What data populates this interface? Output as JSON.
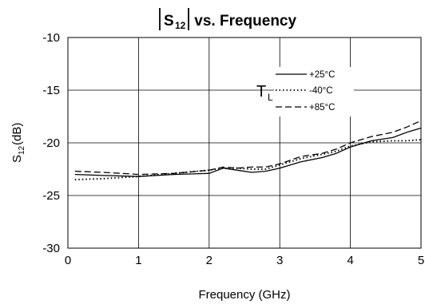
{
  "chart_data": {
    "type": "line",
    "title": {
      "main": "S",
      "subscript": "12",
      "suffix": " vs. Frequency"
    },
    "xlabel": "Frequency (GHz)",
    "ylabel": {
      "main": "S",
      "subscript": "12",
      "suffix": "(dB)"
    },
    "xlim": [
      0,
      5
    ],
    "ylim": [
      -30,
      -10
    ],
    "xticks": [
      "0",
      "1",
      "2",
      "3",
      "4",
      "5"
    ],
    "yticks": [
      "-10",
      "-15",
      "-20",
      "-25",
      "-30"
    ],
    "grid": true,
    "legend": {
      "position": "top-right",
      "parameter": "T",
      "parameter_subscript": "L",
      "entries": [
        "+25°C",
        "-40°C",
        "+85°C"
      ]
    },
    "series": [
      {
        "name": "+25°C",
        "style": "solid",
        "points": [
          [
            0.1,
            -23.0
          ],
          [
            0.5,
            -23.1
          ],
          [
            1.0,
            -23.2
          ],
          [
            1.5,
            -23.0
          ],
          [
            2.0,
            -22.9
          ],
          [
            2.2,
            -22.4
          ],
          [
            2.4,
            -22.6
          ],
          [
            2.6,
            -22.8
          ],
          [
            2.8,
            -22.7
          ],
          [
            3.0,
            -22.4
          ],
          [
            3.3,
            -21.8
          ],
          [
            3.6,
            -21.4
          ],
          [
            3.8,
            -21.0
          ],
          [
            4.0,
            -20.4
          ],
          [
            4.3,
            -19.8
          ],
          [
            4.6,
            -19.5
          ],
          [
            4.8,
            -19.0
          ],
          [
            5.0,
            -18.6
          ]
        ]
      },
      {
        "name": "-40°C",
        "style": "dotted",
        "points": [
          [
            0.1,
            -23.5
          ],
          [
            0.5,
            -23.4
          ],
          [
            1.0,
            -23.2
          ],
          [
            1.5,
            -22.9
          ],
          [
            2.0,
            -22.6
          ],
          [
            2.2,
            -22.4
          ],
          [
            2.4,
            -22.4
          ],
          [
            2.6,
            -22.5
          ],
          [
            2.8,
            -22.5
          ],
          [
            3.0,
            -22.1
          ],
          [
            3.3,
            -21.5
          ],
          [
            3.6,
            -21.1
          ],
          [
            3.8,
            -20.8
          ],
          [
            4.0,
            -20.3
          ],
          [
            4.3,
            -19.9
          ],
          [
            4.6,
            -19.8
          ],
          [
            4.8,
            -19.8
          ],
          [
            5.0,
            -19.7
          ]
        ]
      },
      {
        "name": "+85°C",
        "style": "dashed",
        "points": [
          [
            0.1,
            -22.7
          ],
          [
            0.5,
            -22.8
          ],
          [
            1.0,
            -23.0
          ],
          [
            1.5,
            -22.9
          ],
          [
            2.0,
            -22.6
          ],
          [
            2.2,
            -22.3
          ],
          [
            2.4,
            -22.4
          ],
          [
            2.6,
            -22.3
          ],
          [
            2.8,
            -22.3
          ],
          [
            3.0,
            -22.0
          ],
          [
            3.3,
            -21.3
          ],
          [
            3.6,
            -21.0
          ],
          [
            3.8,
            -20.6
          ],
          [
            4.0,
            -20.0
          ],
          [
            4.3,
            -19.4
          ],
          [
            4.6,
            -19.0
          ],
          [
            4.8,
            -18.5
          ],
          [
            5.0,
            -17.9
          ]
        ]
      }
    ]
  },
  "colors": {
    "line": "#000000",
    "grid": "#000000",
    "background": "#ffffff"
  }
}
